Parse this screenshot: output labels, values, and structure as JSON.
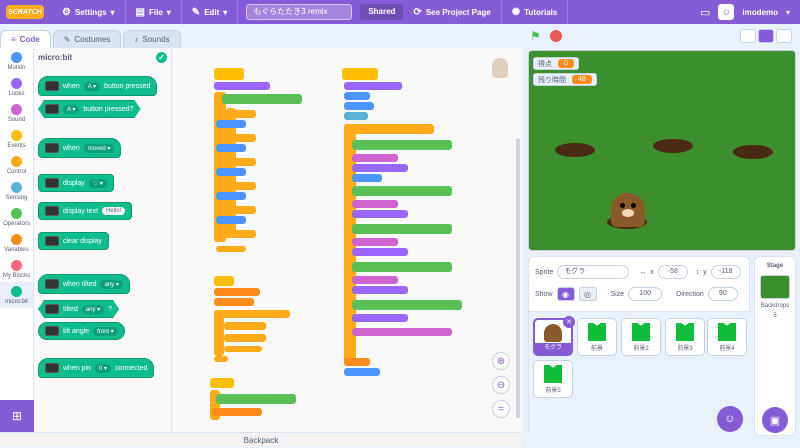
{
  "menu": {
    "logo": "SCRATCH",
    "settings": "Settings",
    "file": "File",
    "edit": "Edit",
    "project_title": "もぐらたたき3 remix",
    "shared": "Shared",
    "see_project_page": "See Project Page",
    "tutorials": "Tutorials",
    "username": "imodemo"
  },
  "tabs": {
    "code": "Code",
    "costumes": "Costumes",
    "sounds": "Sounds"
  },
  "categories": [
    {
      "label": "Motion",
      "color": "#4c97ff"
    },
    {
      "label": "Looks",
      "color": "#9966ff"
    },
    {
      "label": "Sound",
      "color": "#cf63cf"
    },
    {
      "label": "Events",
      "color": "#ffbf00"
    },
    {
      "label": "Control",
      "color": "#ffab19"
    },
    {
      "label": "Sensing",
      "color": "#5cb1d6"
    },
    {
      "label": "Operators",
      "color": "#59c059"
    },
    {
      "label": "Variables",
      "color": "#ff8c1a"
    },
    {
      "label": "My Blocks",
      "color": "#ff6680"
    },
    {
      "label": "micro:bit",
      "color": "#0fbd8c"
    }
  ],
  "palette": {
    "title": "micro:bit",
    "blocks": [
      {
        "text": "when",
        "dd": "A",
        "text2": "button pressed"
      },
      {
        "dd": "A",
        "text2": "button pressed?"
      },
      {
        "text": "when",
        "dd": "moved"
      },
      {
        "text": "display",
        "dd": "♡"
      },
      {
        "text": "display text",
        "pill": "Hello!"
      },
      {
        "text": "clear display"
      },
      {
        "text": "when tilted",
        "dd": "any"
      },
      {
        "text": "tilted",
        "dd": "any",
        "text2": "?"
      },
      {
        "text": "tilt angle",
        "dd": "front"
      },
      {
        "text": "when pin",
        "dd": "0",
        "text2": "connected"
      }
    ]
  },
  "backpack": "Backpack",
  "stage": {
    "monitors": [
      {
        "label": "得点",
        "value": "0"
      },
      {
        "label": "残り時間",
        "value": "48"
      }
    ]
  },
  "sprite_info": {
    "sprite_label": "Sprite",
    "sprite_name": "モグラ",
    "x_label": "x",
    "x": "-58",
    "y_label": "y",
    "y": "-118",
    "show_label": "Show",
    "size_label": "Size",
    "size": "100",
    "direction_label": "Direction",
    "direction": "90"
  },
  "sprites": [
    {
      "name": "モグラ",
      "selected": true
    },
    {
      "name": "前景"
    },
    {
      "name": "前景2"
    },
    {
      "name": "前景3"
    },
    {
      "name": "前景4"
    },
    {
      "name": "前景5"
    }
  ],
  "stage_panel": {
    "title": "Stage",
    "backdrops_label": "Backdrops",
    "backdrops_count": "5"
  }
}
